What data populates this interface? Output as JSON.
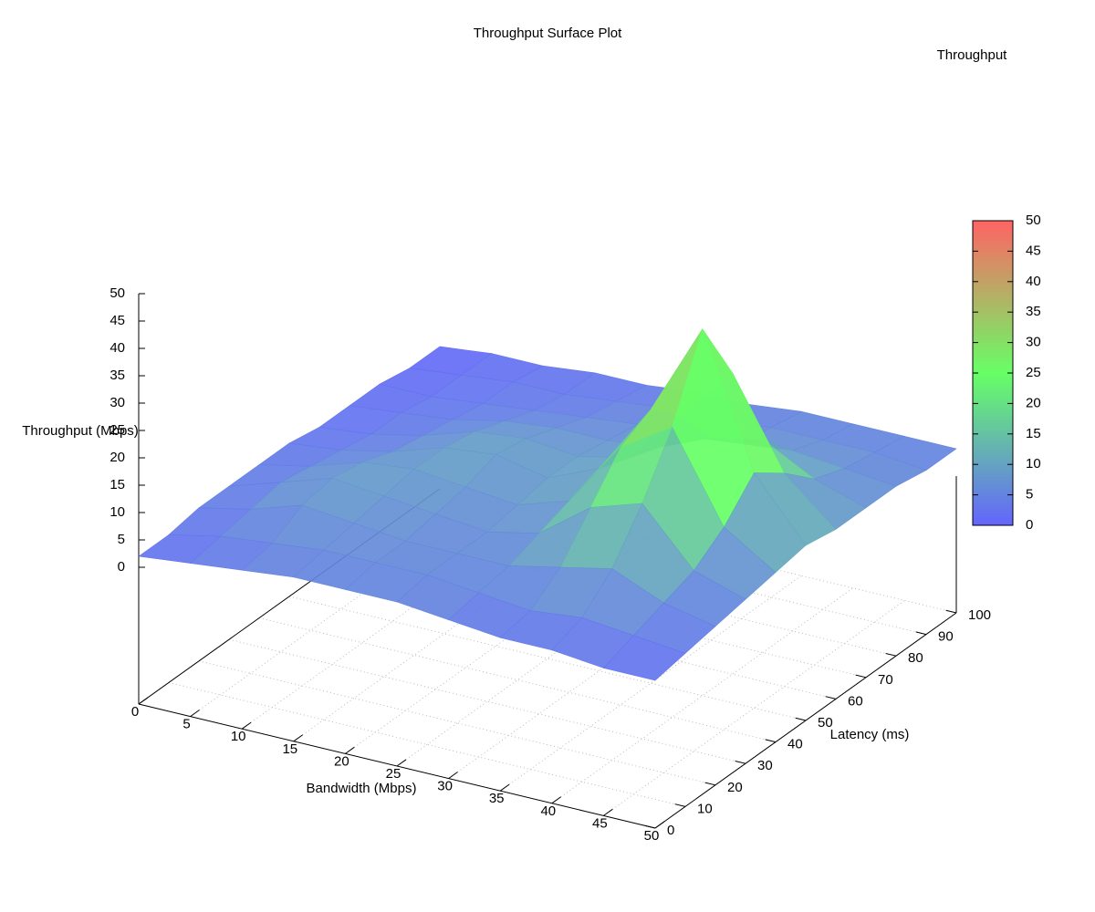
{
  "chart_data": {
    "type": "surface",
    "title": "Throughput Surface Plot",
    "x_label": "Bandwidth (Mbps)",
    "y_label": "Latency (ms)",
    "z_label": "Throughput (Mbps)",
    "colorbar_label": "Throughput",
    "x": [
      0,
      5,
      10,
      15,
      20,
      25,
      30,
      35,
      40,
      45,
      50
    ],
    "y": [
      0,
      10,
      20,
      30,
      40,
      50,
      60,
      70,
      80,
      90,
      100
    ],
    "z": [
      [
        2,
        3,
        4,
        5,
        5,
        5,
        4,
        3,
        3,
        2,
        2
      ],
      [
        2,
        4,
        5,
        6,
        6,
        6,
        5,
        4,
        5,
        4,
        3
      ],
      [
        3,
        5,
        8,
        7,
        6,
        6,
        6,
        8,
        10,
        6,
        4
      ],
      [
        3,
        6,
        9,
        8,
        7,
        6,
        8,
        15,
        18,
        8,
        5
      ],
      [
        3,
        5,
        8,
        9,
        8,
        7,
        10,
        22,
        28,
        12,
        6
      ],
      [
        3,
        4,
        6,
        9,
        10,
        8,
        12,
        25,
        42,
        18,
        7
      ],
      [
        2,
        3,
        5,
        8,
        9,
        8,
        10,
        20,
        30,
        14,
        6
      ],
      [
        2,
        3,
        4,
        6,
        7,
        7,
        8,
        12,
        14,
        9,
        6
      ],
      [
        2,
        2,
        3,
        4,
        5,
        6,
        6,
        7,
        8,
        7,
        6
      ],
      [
        1,
        2,
        3,
        3,
        4,
        5,
        5,
        6,
        6,
        6,
        5
      ],
      [
        1,
        2,
        2,
        3,
        3,
        4,
        4,
        5,
        5,
        5,
        5
      ]
    ],
    "xlim": [
      0,
      50
    ],
    "ylim": [
      0,
      100
    ],
    "zlim": [
      0,
      50
    ],
    "cblim": [
      0,
      50
    ],
    "xticks": [
      0,
      5,
      10,
      15,
      20,
      25,
      30,
      35,
      40,
      45,
      50
    ],
    "yticks": [
      0,
      10,
      20,
      30,
      40,
      50,
      60,
      70,
      80,
      90,
      100
    ],
    "zticks": [
      0,
      5,
      10,
      15,
      20,
      25,
      30,
      35,
      40,
      45,
      50
    ],
    "cbticks": [
      0,
      5,
      10,
      15,
      20,
      25,
      30,
      35,
      40,
      45,
      50
    ],
    "colormap": [
      "#6464ff",
      "#66ff66",
      "#ff6464"
    ],
    "grid": true
  }
}
